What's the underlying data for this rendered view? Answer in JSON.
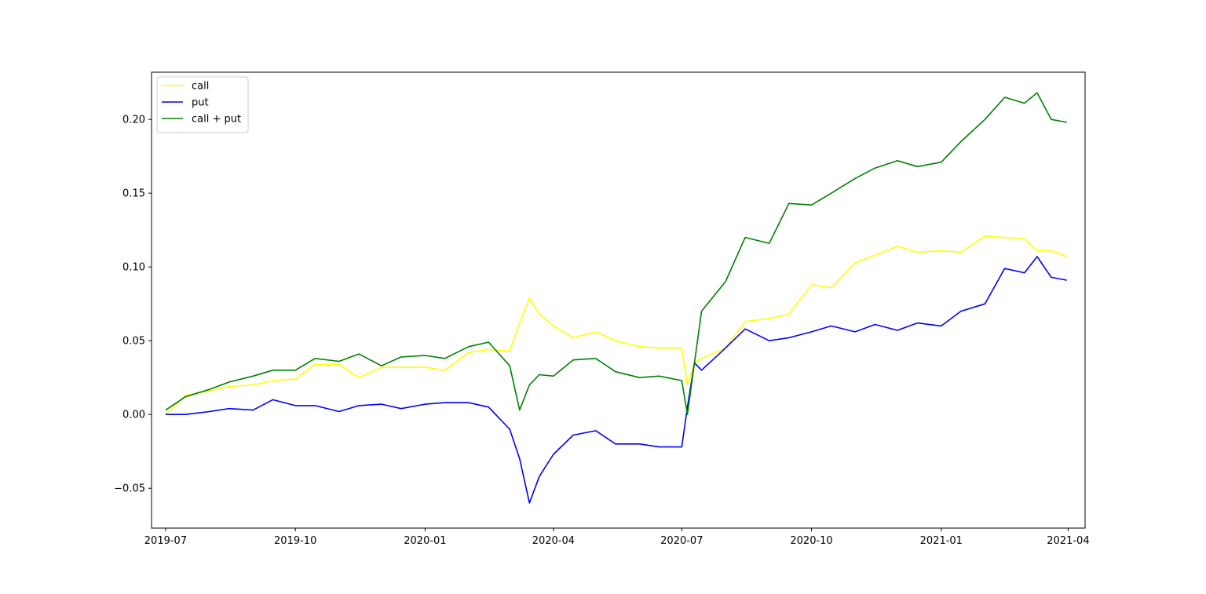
{
  "chart_data": {
    "type": "line",
    "title": "",
    "xlabel": "",
    "ylabel": "",
    "x_ticks": [
      "2019-07",
      "2019-10",
      "2020-01",
      "2020-04",
      "2020-07",
      "2020-10",
      "2021-01",
      "2021-04"
    ],
    "y_ticks": [
      "−0.05",
      "0.00",
      "0.05",
      "0.10",
      "0.15",
      "0.20"
    ],
    "xlim": [
      "2019-06-21",
      "2021-04-13"
    ],
    "ylim": [
      -0.077,
      0.232
    ],
    "grid": false,
    "legend_position": "upper left",
    "x": [
      "2019-07-01",
      "2019-07-15",
      "2019-08-01",
      "2019-08-15",
      "2019-09-01",
      "2019-09-15",
      "2019-10-01",
      "2019-10-15",
      "2019-11-01",
      "2019-11-15",
      "2019-12-01",
      "2019-12-15",
      "2020-01-01",
      "2020-01-15",
      "2020-02-01",
      "2020-02-15",
      "2020-03-01",
      "2020-03-08",
      "2020-03-15",
      "2020-03-22",
      "2020-04-01",
      "2020-04-15",
      "2020-05-01",
      "2020-05-15",
      "2020-06-01",
      "2020-06-15",
      "2020-07-01",
      "2020-07-05",
      "2020-07-10",
      "2020-07-15",
      "2020-08-01",
      "2020-08-15",
      "2020-09-01",
      "2020-09-15",
      "2020-10-01",
      "2020-10-15",
      "2020-11-01",
      "2020-11-15",
      "2020-12-01",
      "2020-12-15",
      "2021-01-01",
      "2021-01-15",
      "2021-02-01",
      "2021-02-15",
      "2021-03-01",
      "2021-03-10",
      "2021-03-20",
      "2021-03-31"
    ],
    "series": [
      {
        "name": "call",
        "color": "#ffff00",
        "values": [
          0.0,
          0.013,
          0.016,
          0.019,
          0.02,
          0.023,
          0.024,
          0.034,
          0.034,
          0.025,
          0.032,
          0.032,
          0.032,
          0.03,
          0.042,
          0.044,
          0.043,
          0.062,
          0.079,
          0.068,
          0.06,
          0.052,
          0.056,
          0.05,
          0.046,
          0.045,
          0.045,
          0.02,
          0.035,
          0.038,
          0.045,
          0.063,
          0.065,
          0.068,
          0.088,
          0.086,
          0.103,
          0.108,
          0.114,
          0.11,
          0.111,
          0.11,
          0.121,
          0.12,
          0.119,
          0.111,
          0.111,
          0.107
        ]
      },
      {
        "name": "put",
        "color": "#0000ff",
        "values": [
          0.0,
          0.0,
          0.002,
          0.004,
          0.003,
          0.01,
          0.006,
          0.006,
          0.002,
          0.006,
          0.007,
          0.004,
          0.007,
          0.008,
          0.008,
          0.005,
          -0.01,
          -0.03,
          -0.06,
          -0.042,
          -0.027,
          -0.014,
          -0.011,
          -0.02,
          -0.02,
          -0.022,
          -0.022,
          0.005,
          0.035,
          0.03,
          0.045,
          0.058,
          0.05,
          0.052,
          0.056,
          0.06,
          0.056,
          0.061,
          0.057,
          0.062,
          0.06,
          0.07,
          0.075,
          0.099,
          0.096,
          0.107,
          0.093,
          0.091
        ]
      },
      {
        "name": "call + put",
        "color": "#008000",
        "values": [
          0.003,
          0.012,
          0.017,
          0.022,
          0.026,
          0.03,
          0.03,
          0.038,
          0.036,
          0.041,
          0.033,
          0.039,
          0.04,
          0.038,
          0.046,
          0.049,
          0.033,
          0.003,
          0.02,
          0.027,
          0.026,
          0.037,
          0.038,
          0.029,
          0.025,
          0.026,
          0.023,
          0.0,
          0.035,
          0.07,
          0.09,
          0.12,
          0.116,
          0.143,
          0.142,
          0.15,
          0.16,
          0.167,
          0.172,
          0.168,
          0.171,
          0.185,
          0.2,
          0.215,
          0.211,
          0.218,
          0.2,
          0.198
        ]
      }
    ]
  }
}
